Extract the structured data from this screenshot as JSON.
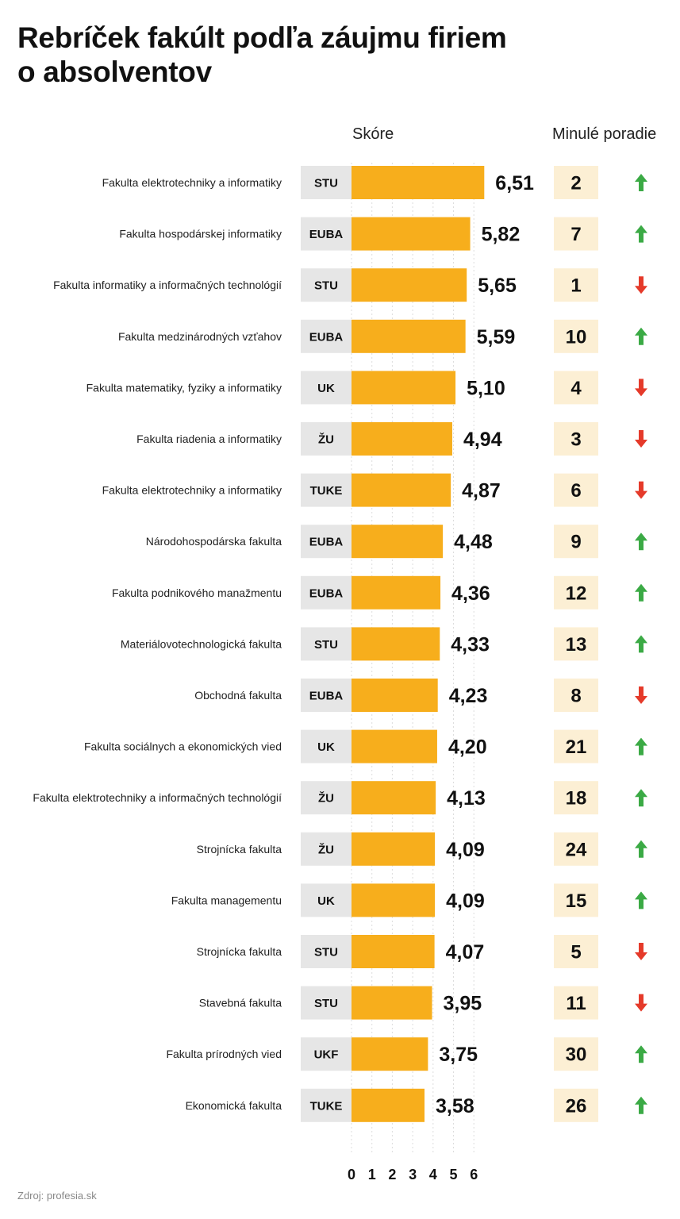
{
  "title": "Rebríček fakúlt podľa záujmu firiem o absolventov",
  "header_score": "Skóre",
  "header_previous": "Minulé poradie",
  "source": "Zdroj: profesia.sk",
  "colors": {
    "bar": "#F7AE1C",
    "uni_box": "#E6E6E6",
    "prev_box": "#FCEFD4",
    "up": "#3BAA45",
    "down": "#E53A2A",
    "grid": "#DDDDDD"
  },
  "chart_data": {
    "type": "bar",
    "orientation": "horizontal",
    "x_ticks": [
      "0",
      "1",
      "2",
      "3",
      "4",
      "5",
      "6"
    ],
    "xlim": [
      0,
      6.51
    ],
    "rows": [
      {
        "faculty": "Fakulta elektrotechniky a informatiky",
        "university": "STU",
        "score": 6.51,
        "score_label": "6,51",
        "previous_rank": "2",
        "trend": "up"
      },
      {
        "faculty": "Fakulta hospodárskej informatiky",
        "university": "EUBA",
        "score": 5.82,
        "score_label": "5,82",
        "previous_rank": "7",
        "trend": "up"
      },
      {
        "faculty": "Fakulta informatiky a informačných technológií",
        "university": "STU",
        "score": 5.65,
        "score_label": "5,65",
        "previous_rank": "1",
        "trend": "down"
      },
      {
        "faculty": "Fakulta medzinárodných vzťahov",
        "university": "EUBA",
        "score": 5.59,
        "score_label": "5,59",
        "previous_rank": "10",
        "trend": "up"
      },
      {
        "faculty": "Fakulta matematiky, fyziky a informatiky",
        "university": "UK",
        "score": 5.1,
        "score_label": "5,10",
        "previous_rank": "4",
        "trend": "down"
      },
      {
        "faculty": "Fakulta riadenia a informatiky",
        "university": "ŽU",
        "score": 4.94,
        "score_label": "4,94",
        "previous_rank": "3",
        "trend": "down"
      },
      {
        "faculty": "Fakulta elektrotechniky a informatiky",
        "university": "TUKE",
        "score": 4.87,
        "score_label": "4,87",
        "previous_rank": "6",
        "trend": "down"
      },
      {
        "faculty": "Národohospodárska fakulta",
        "university": "EUBA",
        "score": 4.48,
        "score_label": "4,48",
        "previous_rank": "9",
        "trend": "up"
      },
      {
        "faculty": "Fakulta podnikového manažmentu",
        "university": "EUBA",
        "score": 4.36,
        "score_label": "4,36",
        "previous_rank": "12",
        "trend": "up"
      },
      {
        "faculty": "Materiálovotechnologická fakulta",
        "university": "STU",
        "score": 4.33,
        "score_label": "4,33",
        "previous_rank": "13",
        "trend": "up"
      },
      {
        "faculty": "Obchodná fakulta",
        "university": "EUBA",
        "score": 4.23,
        "score_label": "4,23",
        "previous_rank": "8",
        "trend": "down"
      },
      {
        "faculty": "Fakulta sociálnych a ekonomických vied",
        "university": "UK",
        "score": 4.2,
        "score_label": "4,20",
        "previous_rank": "21",
        "trend": "up"
      },
      {
        "faculty": "Fakulta elektrotechniky a informačných technológií",
        "university": "ŽU",
        "score": 4.13,
        "score_label": "4,13",
        "previous_rank": "18",
        "trend": "up"
      },
      {
        "faculty": "Strojnícka fakulta",
        "university": "ŽU",
        "score": 4.09,
        "score_label": "4,09",
        "previous_rank": "24",
        "trend": "up"
      },
      {
        "faculty": "Fakulta managementu",
        "university": "UK",
        "score": 4.09,
        "score_label": "4,09",
        "previous_rank": "15",
        "trend": "up"
      },
      {
        "faculty": "Strojnícka fakulta",
        "university": "STU",
        "score": 4.07,
        "score_label": "4,07",
        "previous_rank": "5",
        "trend": "down"
      },
      {
        "faculty": "Stavebná fakulta",
        "university": "STU",
        "score": 3.95,
        "score_label": "3,95",
        "previous_rank": "11",
        "trend": "down"
      },
      {
        "faculty": "Fakulta prírodných vied",
        "university": "UKF",
        "score": 3.75,
        "score_label": "3,75",
        "previous_rank": "30",
        "trend": "up"
      },
      {
        "faculty": "Ekonomická fakulta",
        "university": "TUKE",
        "score": 3.58,
        "score_label": "3,58",
        "previous_rank": "26",
        "trend": "up"
      }
    ]
  }
}
